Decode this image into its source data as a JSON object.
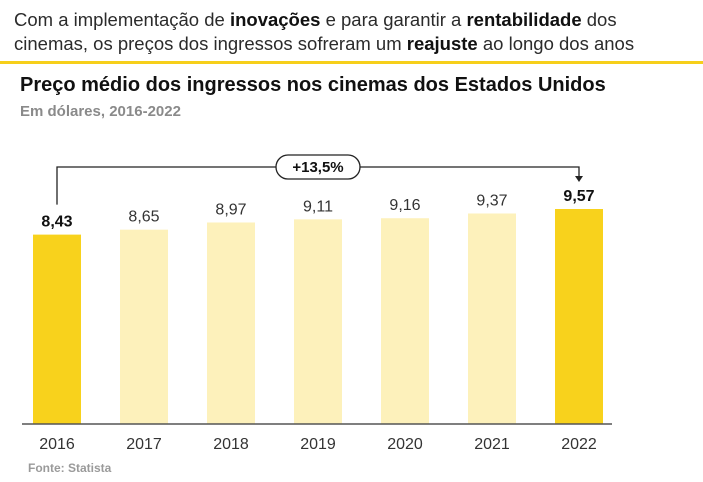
{
  "headline": {
    "p1": "Com a implementação de ",
    "b1": "inovações",
    "p2": " e para garantir a ",
    "b2": "rentabilidade",
    "p3": " dos cinemas, os preços dos ingressos sofreram um ",
    "b3": "reajuste",
    "p4": " ao longo dos anos"
  },
  "source": "Fonte: Statista",
  "colors": {
    "highlight_bar": "#f8d21c",
    "light_bar": "#fdf1bb",
    "rule": "#f6cf1a",
    "axis": "#555555"
  },
  "chart_data": {
    "type": "bar",
    "title": "Preço médio dos ingressos nos cinemas dos Estados Unidos",
    "subtitle": "Em dólares, 2016-2022",
    "categories": [
      "2016",
      "2017",
      "2018",
      "2019",
      "2020",
      "2021",
      "2022"
    ],
    "values": [
      8.43,
      8.65,
      8.97,
      9.11,
      9.16,
      9.37,
      9.57
    ],
    "value_labels": [
      "8,43",
      "8,65",
      "8,97",
      "9,11",
      "9,16",
      "9,37",
      "9,57"
    ],
    "highlighted": [
      true,
      false,
      false,
      false,
      false,
      false,
      true
    ],
    "annotation": "+13,5%",
    "ylim": [
      0,
      9.57
    ]
  }
}
